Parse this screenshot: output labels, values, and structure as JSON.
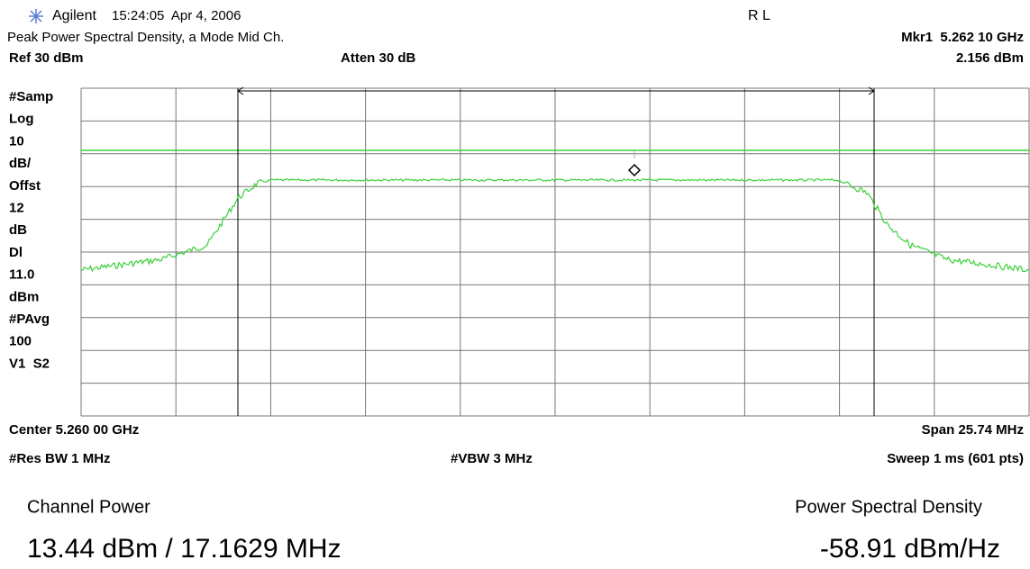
{
  "header": {
    "brand": "Agilent",
    "timestamp": "15:24:05  Apr 4, 2006",
    "mode": "R L"
  },
  "info": {
    "title": "Peak Power Spectral Density, a Mode Mid Ch.",
    "marker": "Mkr1  5.262 10 GHz",
    "ref": "Ref 30 dBm",
    "atten": "Atten 30 dB",
    "marker_value": "2.156 dBm"
  },
  "side_labels": [
    "#Samp",
    "Log",
    "10",
    "dB/",
    "Offst",
    "12",
    "dB",
    "Dl",
    "11.0",
    "dBm",
    "#PAvg",
    "100",
    "V1  S2"
  ],
  "footer": {
    "center": "Center 5.260 00 GHz",
    "span": "Span 25.74 MHz",
    "res_bw": "#Res BW 1 MHz",
    "vbw": "#VBW 3 MHz",
    "sweep": "Sweep 1 ms (601 pts)"
  },
  "results": {
    "channel_power_label": "Channel Power",
    "channel_power_value": "13.44 dBm / 17.1629 MHz",
    "psd_label": "Power Spectral Density",
    "psd_value": "-58.91 dBm/Hz"
  }
}
